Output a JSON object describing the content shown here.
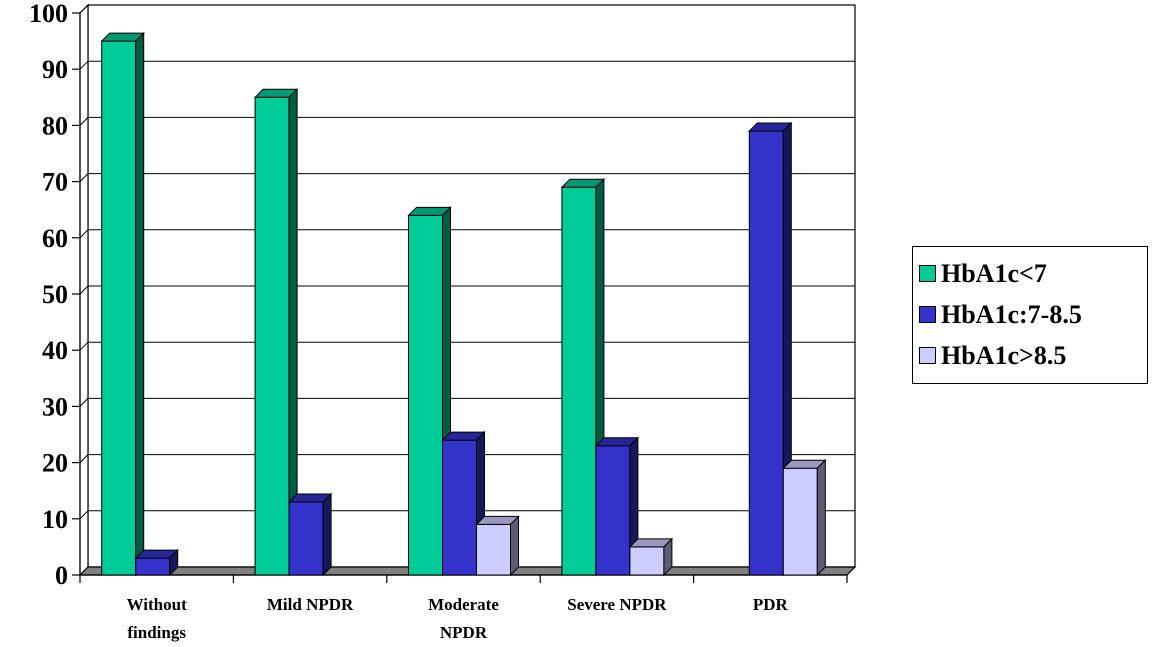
{
  "chart_data": {
    "type": "bar",
    "categories": [
      "Without findings",
      "Mild NPDR",
      "Moderate NPDR",
      "Severe NPDR",
      "PDR"
    ],
    "category_lines": [
      [
        "Without",
        "findings"
      ],
      [
        "Mild NPDR"
      ],
      [
        "Moderate",
        "NPDR"
      ],
      [
        "Severe NPDR"
      ],
      [
        "PDR"
      ]
    ],
    "series": [
      {
        "name": "HbA1c<7",
        "values": [
          95,
          85,
          64,
          69,
          0
        ],
        "color": "#00CC99"
      },
      {
        "name": "HbA1c:7-8.5",
        "values": [
          3,
          13,
          24,
          23,
          79
        ],
        "color": "#3333CC"
      },
      {
        "name": "HbA1c>8.5",
        "values": [
          0,
          0,
          9,
          5,
          19
        ],
        "color": "#CCCCFF"
      }
    ],
    "ylim": [
      0,
      100
    ],
    "yticks": [
      0,
      10,
      20,
      30,
      40,
      50,
      60,
      70,
      80,
      90,
      100
    ],
    "grid": true,
    "legend_position": "right",
    "style": "3d-clustered-bar"
  }
}
